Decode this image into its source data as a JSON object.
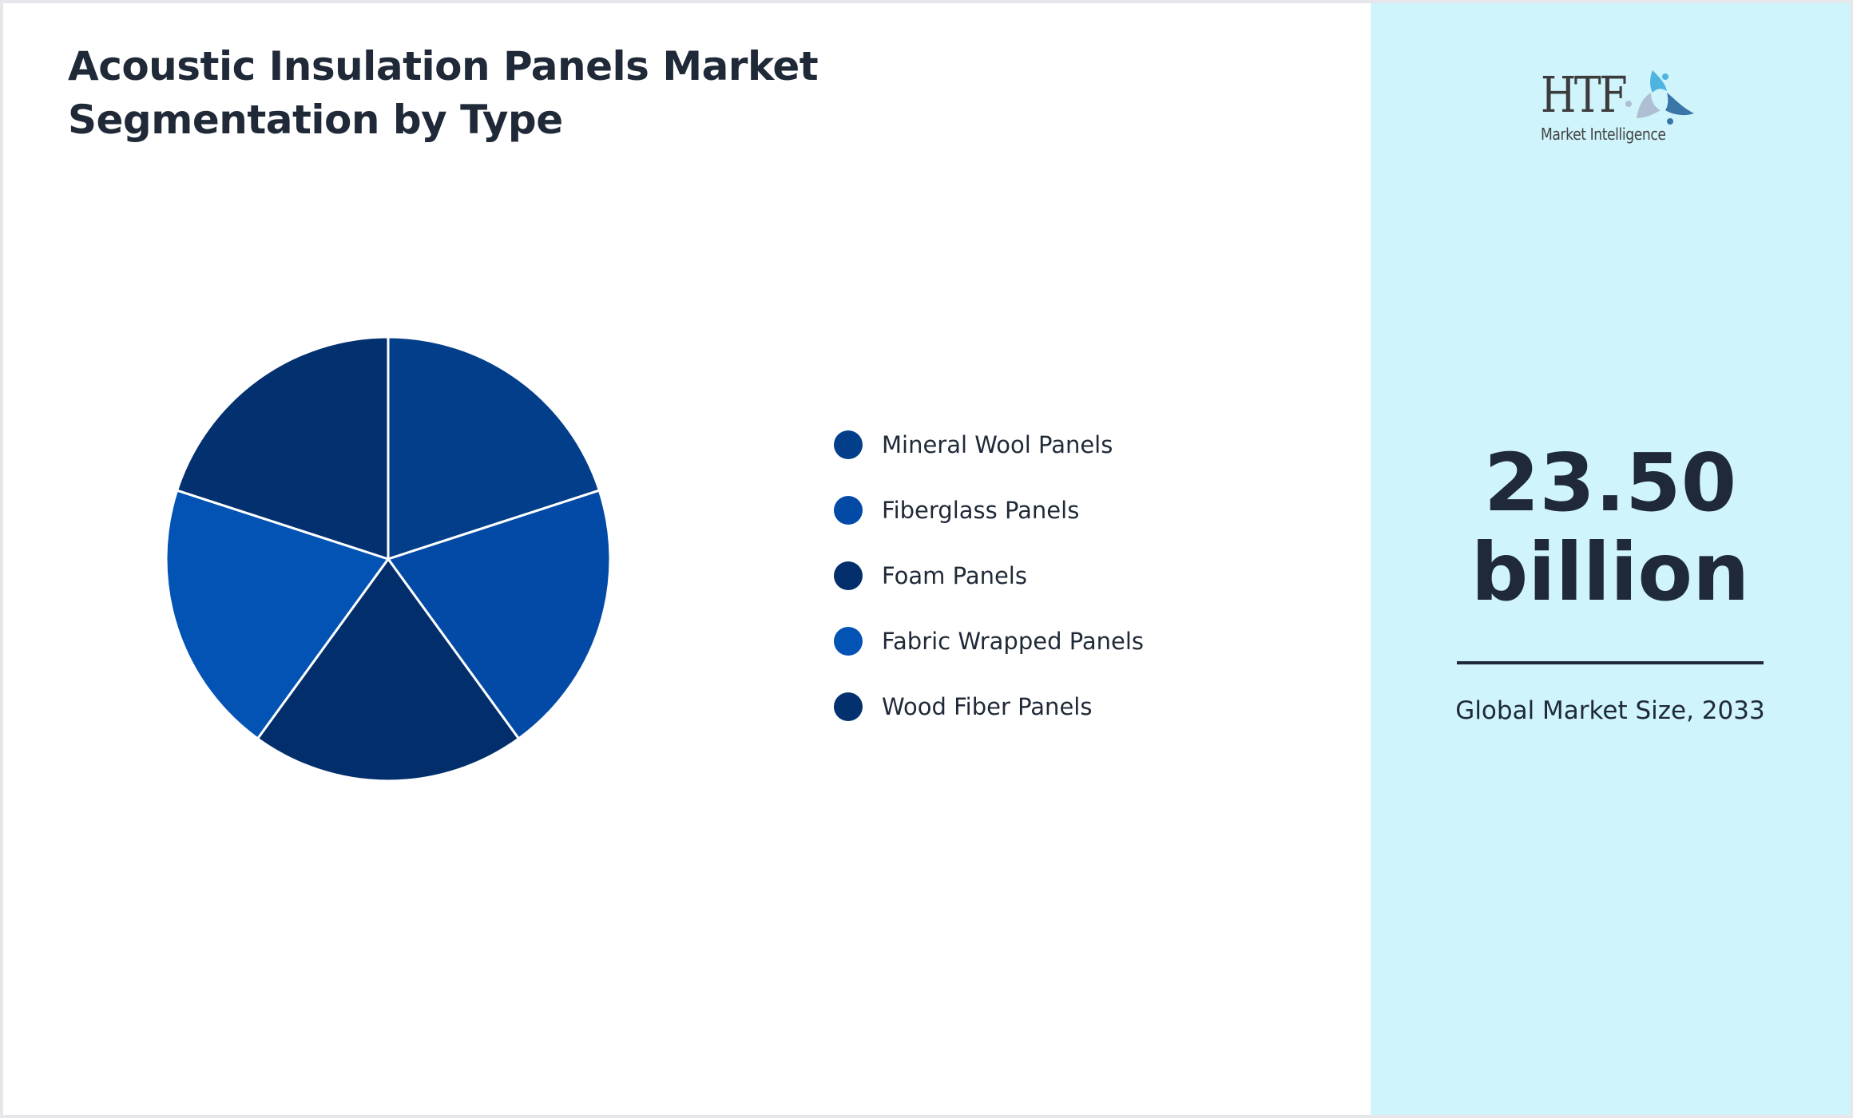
{
  "title": "Acoustic Insulation Panels Market Segmentation by Type",
  "chart_data": {
    "type": "pie",
    "title": "Acoustic Insulation Panels Market Segmentation by Type",
    "categories": [
      "Mineral Wool Panels",
      "Fiberglass Panels",
      "Foam Panels",
      "Fabric Wrapped Panels",
      "Wood Fiber Panels"
    ],
    "values": [
      20,
      20,
      20,
      20,
      20
    ],
    "colors": [
      "#023e8a",
      "#034aa6",
      "#022f6b",
      "#0353b4",
      "#03306f"
    ],
    "start_angle_deg": -90,
    "direction": "clockwise",
    "legend_position": "right"
  },
  "legend": [
    {
      "label": "Mineral Wool Panels",
      "color": "#023e8a"
    },
    {
      "label": "Fiberglass Panels",
      "color": "#034aa6"
    },
    {
      "label": "Foam Panels",
      "color": "#022f6b"
    },
    {
      "label": "Fabric Wrapped Panels",
      "color": "#0353b4"
    },
    {
      "label": "Wood Fiber Panels",
      "color": "#03306f"
    }
  ],
  "sidebar": {
    "logo": {
      "brand": "HTF",
      "tagline": "Market Intelligence"
    },
    "metric_value": "23.50",
    "metric_unit": "billion",
    "caption": "Global Market Size, 2033",
    "background": "#cff4fc"
  }
}
